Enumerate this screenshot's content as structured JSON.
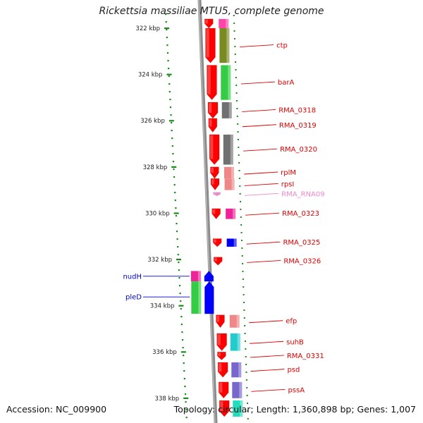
{
  "title": "Rickettsia massiliae MTU5, complete genome",
  "footer": {
    "accession": "Accession: NC_009900",
    "topology": "Topology: circular; Length: 1,360,898 bp; Genes: 1,007"
  },
  "colors": {
    "background": "#ffffff",
    "scale_ticks": "#1a8a1a",
    "backbone": "#8c8c8c",
    "forward_gene": "#ff0000",
    "reverse_gene": "#0000ff",
    "label_red": "#dd0000",
    "label_blue": "#0000cc",
    "label_pink": "#ee88cc"
  },
  "scale": {
    "unit": "kbp",
    "ticks": [
      {
        "label": "322 kbp",
        "kb": 322
      },
      {
        "label": "324 kbp",
        "kb": 324
      },
      {
        "label": "326 kbp",
        "kb": 326
      },
      {
        "label": "328 kbp",
        "kb": 328
      },
      {
        "label": "330 kbp",
        "kb": 330
      },
      {
        "label": "332 kbp",
        "kb": 332
      },
      {
        "label": "334 kbp",
        "kb": 334
      },
      {
        "label": "336 kbp",
        "kb": 336
      },
      {
        "label": "338 kbp",
        "kb": 338
      }
    ]
  },
  "genes": [
    {
      "name": "",
      "strand": "+",
      "start_kb": 321.6,
      "end_kb": 322.0,
      "cat_color": "#ff44aa",
      "label_color": "#dd0000"
    },
    {
      "name": "ctp",
      "strand": "+",
      "start_kb": 322.0,
      "end_kb": 323.5,
      "cat_color": "#7a8a22",
      "label_color": "#dd0000"
    },
    {
      "name": "barA",
      "strand": "+",
      "start_kb": 323.6,
      "end_kb": 325.1,
      "cat_color": "#33cc44",
      "label_color": "#dd0000"
    },
    {
      "name": "RMA_0318",
      "strand": "+",
      "start_kb": 325.2,
      "end_kb": 325.9,
      "cat_color": "#707070",
      "label_color": "#dd0000"
    },
    {
      "name": "RMA_0319",
      "strand": "+",
      "start_kb": 325.9,
      "end_kb": 326.5,
      "cat_color": "",
      "label_color": "#dd0000"
    },
    {
      "name": "RMA_0320",
      "strand": "+",
      "start_kb": 326.6,
      "end_kb": 327.9,
      "cat_color": "#707070",
      "label_color": "#dd0000"
    },
    {
      "name": "rplM",
      "strand": "+",
      "start_kb": 328.0,
      "end_kb": 328.5,
      "cat_color": "#ee8888",
      "label_color": "#dd0000"
    },
    {
      "name": "rpsI",
      "strand": "+",
      "start_kb": 328.5,
      "end_kb": 329.0,
      "cat_color": "#ee8888",
      "label_color": "#dd0000"
    },
    {
      "name": "RMA_RNA09",
      "strand": "+",
      "start_kb": 329.1,
      "end_kb": 329.25,
      "cat_color": "",
      "label_color": "#ee88cc"
    },
    {
      "name": "RMA_0323",
      "strand": "+",
      "start_kb": 329.8,
      "end_kb": 330.25,
      "cat_color": "#ee2299",
      "label_color": "#dd0000"
    },
    {
      "name": "RMA_0325",
      "strand": "+",
      "start_kb": 331.1,
      "end_kb": 331.45,
      "cat_color": "#0000ee",
      "label_color": "#dd0000"
    },
    {
      "name": "RMA_0326",
      "strand": "+",
      "start_kb": 331.9,
      "end_kb": 332.25,
      "cat_color": "",
      "label_color": "#dd0000"
    },
    {
      "name": "nudH",
      "strand": "-",
      "start_kb": 332.5,
      "end_kb": 332.95,
      "cat_color": "#ee2299",
      "label_color": "#0000cc"
    },
    {
      "name": "pleD",
      "strand": "-",
      "start_kb": 332.95,
      "end_kb": 334.35,
      "cat_color": "#33cc44",
      "label_color": "#0000cc"
    },
    {
      "name": "efp",
      "strand": "+",
      "start_kb": 334.4,
      "end_kb": 334.95,
      "cat_color": "#ee8888",
      "label_color": "#dd0000"
    },
    {
      "name": "suhB",
      "strand": "+",
      "start_kb": 335.2,
      "end_kb": 335.95,
      "cat_color": "#22cccc",
      "label_color": "#dd0000"
    },
    {
      "name": "RMA_0331",
      "strand": "+",
      "start_kb": 336.0,
      "end_kb": 336.35,
      "cat_color": "",
      "label_color": "#dd0000"
    },
    {
      "name": "psd",
      "strand": "+",
      "start_kb": 336.45,
      "end_kb": 337.1,
      "cat_color": "#7766cc",
      "label_color": "#dd0000"
    },
    {
      "name": "pssA",
      "strand": "+",
      "start_kb": 337.3,
      "end_kb": 338.0,
      "cat_color": "#7766cc",
      "label_color": "#dd0000"
    },
    {
      "name": "",
      "strand": "+",
      "start_kb": 338.1,
      "end_kb": 338.8,
      "cat_color": "#22ddbb",
      "label_color": "#dd0000"
    }
  ]
}
